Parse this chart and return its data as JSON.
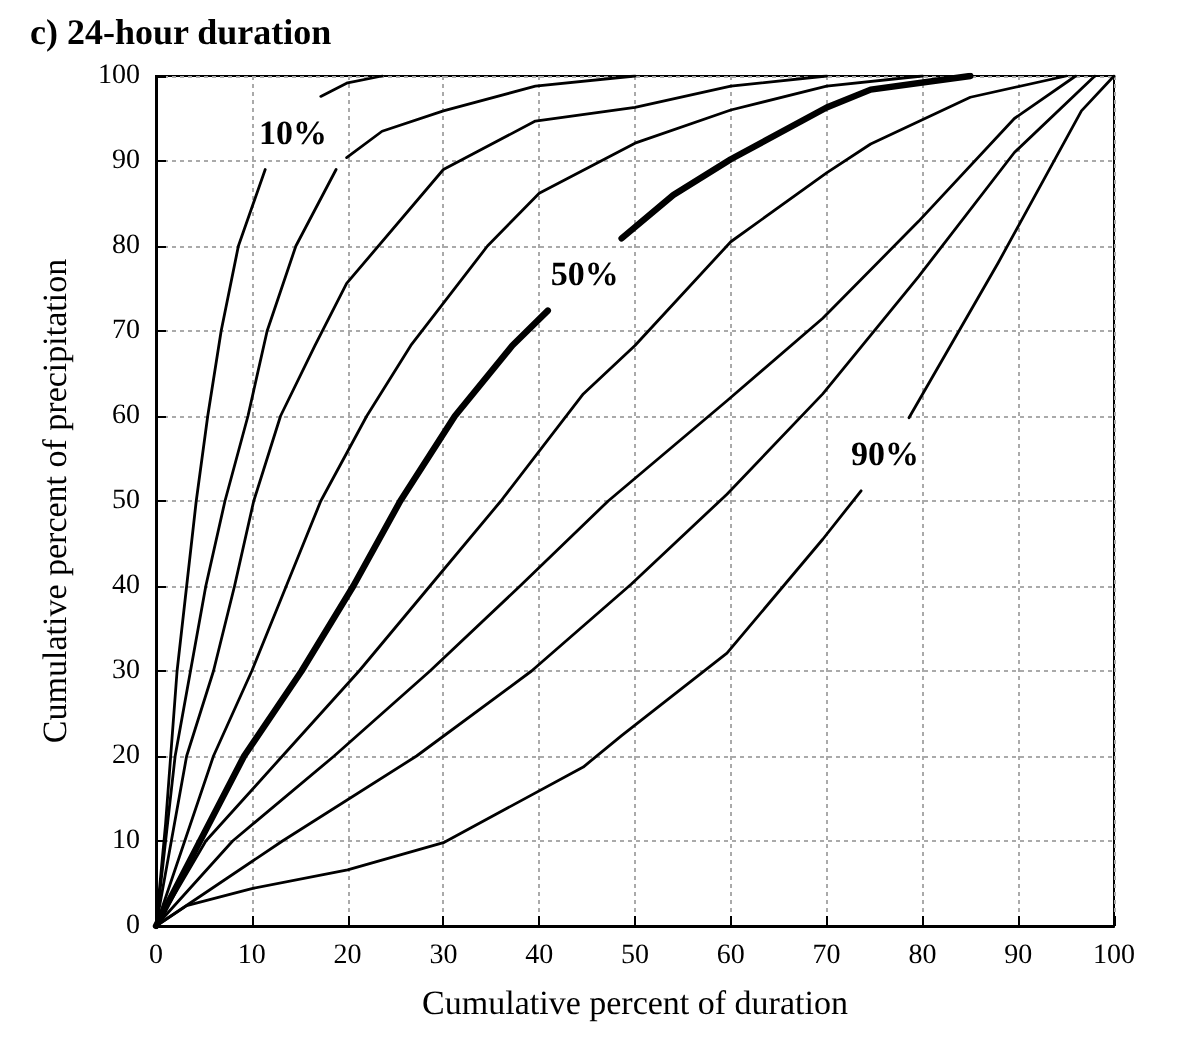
{
  "chart_data": {
    "type": "line",
    "title": "c) 24-hour duration",
    "xlabel": "Cumulative percent of duration",
    "ylabel": "Cumulative percent of precipitation",
    "xlim": [
      0,
      100
    ],
    "ylim": [
      0,
      100
    ],
    "xticks": [
      0,
      10,
      20,
      30,
      40,
      50,
      60,
      70,
      80,
      90,
      100
    ],
    "yticks": [
      0,
      10,
      20,
      30,
      40,
      50,
      60,
      70,
      80,
      90,
      100
    ],
    "grid": true,
    "marker": "none",
    "line_style": "solid",
    "series": [
      {
        "name": "10%",
        "color": "#000000",
        "x": [
          0,
          1,
          2.2,
          3.2,
          4.2,
          5.4,
          6.8,
          8.6,
          11.4,
          14.3,
          17.2,
          20,
          23.6
        ],
        "values": [
          0,
          12,
          30,
          40,
          50,
          60,
          70,
          80,
          89,
          null,
          97.6,
          99.2,
          100
        ]
      },
      {
        "color": "#000000",
        "x": [
          0,
          2,
          3.6,
          5.2,
          7.2,
          9.6,
          11.6,
          14.6,
          18.8,
          19.4,
          19.9,
          23.6,
          30,
          39.6,
          50
        ],
        "values": [
          0,
          20,
          30,
          40,
          50,
          60,
          70,
          80,
          89,
          null,
          90.4,
          93.5,
          95.9,
          98.8,
          100
        ]
      },
      {
        "color": "#000000",
        "x": [
          0,
          3.2,
          6,
          8.2,
          10.2,
          13,
          16.6,
          19.9,
          30,
          39.6,
          50,
          60,
          70
        ],
        "values": [
          0,
          20,
          30,
          40,
          50,
          60,
          68.3,
          75.6,
          89,
          94.7,
          96.3,
          98.8,
          100
        ]
      },
      {
        "color": "#000000",
        "x": [
          0,
          6,
          10,
          13.6,
          17.2,
          22,
          26.6,
          34.6,
          40,
          50,
          60,
          70,
          80
        ],
        "values": [
          0,
          20,
          30,
          40,
          50,
          60,
          68.3,
          80,
          86.2,
          92.1,
          96,
          98.8,
          100
        ]
      },
      {
        "name": "50%",
        "color": "#000000",
        "x": [
          0,
          9.2,
          15.2,
          20.6,
          25.5,
          31.2,
          37.2,
          40.9,
          44.8,
          48.6,
          54,
          60,
          70,
          74.6,
          85
        ],
        "values": [
          0,
          20,
          30,
          40,
          50,
          60,
          68.3,
          72.4,
          null,
          80.9,
          86,
          90.2,
          96.3,
          98.4,
          100
        ]
      },
      {
        "color": "#000000",
        "x": [
          0,
          5.2,
          13.2,
          21.2,
          28.6,
          36,
          44.6,
          50,
          60,
          70,
          74.6,
          85,
          95
        ],
        "values": [
          0,
          10,
          20,
          30,
          40,
          50,
          62.6,
          68.3,
          80.5,
          88.6,
          92,
          97.5,
          100
        ]
      },
      {
        "color": "#000000",
        "x": [
          0,
          8,
          18.6,
          28.6,
          38,
          47.2,
          59.6,
          69.6,
          79.6,
          89.6,
          96
        ],
        "values": [
          0,
          10,
          20,
          30,
          40,
          50,
          61.8,
          71.5,
          82.9,
          95,
          100
        ]
      },
      {
        "color": "#000000",
        "x": [
          0,
          13.2,
          27.2,
          39.2,
          49.6,
          59.6,
          69.6,
          79.6,
          89.6,
          98
        ],
        "values": [
          0,
          10,
          20,
          30,
          40.2,
          50.8,
          62.6,
          76.4,
          91,
          100
        ]
      },
      {
        "name": "90%",
        "color": "#000000",
        "x": [
          0,
          3.2,
          10,
          20,
          30,
          44.6,
          48.6,
          59.6,
          69.6,
          73.6,
          76.1,
          78.6,
          87.9,
          96.6,
          100
        ],
        "values": [
          0,
          2.4,
          4.4,
          6.6,
          9.8,
          18.7,
          22.4,
          32.1,
          45.5,
          51.2,
          null,
          59.8,
          78,
          95.9,
          100
        ]
      }
    ]
  }
}
